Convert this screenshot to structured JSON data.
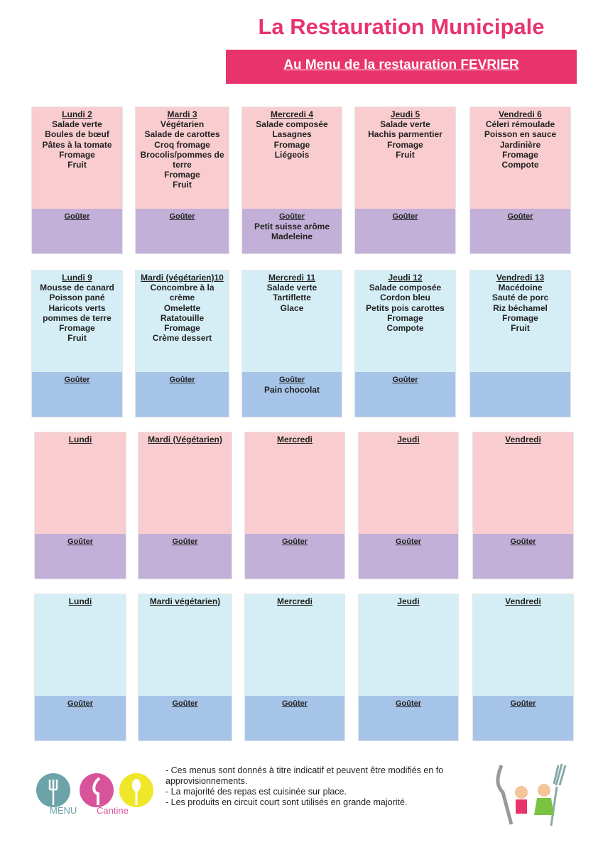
{
  "header": {
    "title": "La Restauration Municipale",
    "banner": "Au Menu de la restauration FEVRIER"
  },
  "weeks": [
    {
      "days": [
        {
          "title": "Lundi 2",
          "items": [
            "Salade verte",
            "Boules de bœuf",
            "Pâtes à la tomate",
            "Fromage",
            "Fruit"
          ],
          "gouter": {
            "label": "Goûter",
            "items": []
          }
        },
        {
          "title": "Mardi  3",
          "items": [
            "Végétarien",
            "Salade de carottes",
            "Croq fromage",
            "Brocolis/pommes de terre",
            "Fromage",
            "Fruit"
          ],
          "gouter": {
            "label": "Goûter",
            "items": []
          }
        },
        {
          "title": "Mercredi 4",
          "items": [
            "Salade composée",
            "Lasagnes",
            "Fromage",
            "Liégeois"
          ],
          "gouter": {
            "label": "Goûter",
            "items": [
              "Petit suisse arôme",
              "Madeleine"
            ]
          }
        },
        {
          "title": "Jeudi 5",
          "items": [
            "Salade verte",
            "Hachis parmentier",
            "Fromage",
            "Fruit"
          ],
          "gouter": {
            "label": "Goûter",
            "items": []
          }
        },
        {
          "title": "Vendredi 6",
          "items": [
            "Céleri rémoulade",
            "Poisson en sauce",
            "Jardinière",
            "Fromage",
            "Compote"
          ],
          "gouter": {
            "label": "Goûter",
            "items": []
          }
        }
      ]
    },
    {
      "days": [
        {
          "title": "Lundi 9",
          "items": [
            "Mousse de canard",
            "Poisson pané",
            "Haricots verts pommes de terre",
            "Fromage",
            "Fruit"
          ],
          "gouter": {
            "label": "Goûter",
            "items": []
          }
        },
        {
          "title": "Mardi  (végétarien)10",
          "items": [
            "Concombre à la crème",
            "Omelette",
            "Ratatouille",
            "Fromage",
            "Crème dessert"
          ],
          "gouter": {
            "label": "Goûter",
            "items": []
          }
        },
        {
          "title": "Mercredi 11",
          "items": [
            "Salade verte",
            "Tartiflette",
            "Glace"
          ],
          "gouter": {
            "label": "Goûter",
            "items": [
              "Pain chocolat"
            ]
          }
        },
        {
          "title": "Jeudi 12",
          "items": [
            "Salade composée",
            "Cordon bleu",
            "Petits pois carottes",
            "Fromage",
            "Compote"
          ],
          "gouter": {
            "label": "Goûter",
            "items": []
          }
        },
        {
          "title": "Vendredi 13",
          "items": [
            "Macédoine",
            "Sauté de porc",
            "Riz béchamel",
            "Fromage",
            "Fruit"
          ],
          "gouter": {
            "items": []
          }
        }
      ]
    },
    {
      "days": [
        {
          "title": "Lundi",
          "items": [],
          "gouter": {
            "label": "Goûter",
            "items": []
          }
        },
        {
          "title": "Mardi (Végétarien)",
          "items": [],
          "gouter": {
            "label": "Goûter",
            "items": []
          }
        },
        {
          "title": "Mercredi",
          "items": [],
          "gouter": {
            "label": "Goûter",
            "items": []
          }
        },
        {
          "title": "Jeudi",
          "items": [],
          "gouter": {
            "label": "Goûter",
            "items": []
          }
        },
        {
          "title": "Vendredi",
          "items": [],
          "gouter": {
            "label": "Goûter",
            "items": []
          }
        }
      ]
    },
    {
      "days": [
        {
          "title": "Lundi",
          "items": [],
          "gouter": {
            "label": "Goûter",
            "items": []
          }
        },
        {
          "title": "Mardi  végétarien)",
          "items": [],
          "gouter": {
            "label": "Goûter",
            "items": []
          }
        },
        {
          "title": "Mercredi",
          "items": [],
          "gouter": {
            "label": "Goûter",
            "items": []
          }
        },
        {
          "title": "Jeudi",
          "items": [],
          "gouter": {
            "label": "Goûter",
            "items": []
          }
        },
        {
          "title": "Vendredi",
          "items": [],
          "gouter": {
            "label": "Goûter",
            "items": []
          }
        }
      ]
    }
  ],
  "footer": {
    "logo": {
      "menu": "MENU",
      "cantine": "Cantine"
    },
    "notes": [
      "- Ces menus sont donnés à titre indicatif et peuvent être modifiés en fo",
      "approvisionnements.",
      "- La majorité des repas est cuisinée sur place.",
      "- Les produits en circuit court sont utilisés en grande majorité."
    ]
  }
}
